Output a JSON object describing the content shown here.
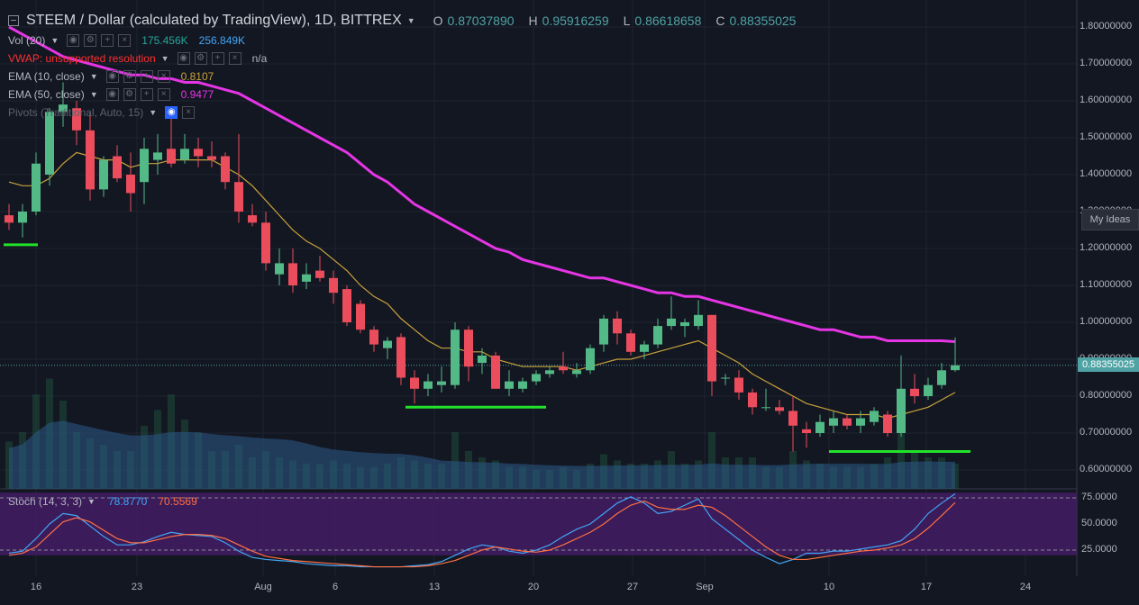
{
  "header": {
    "symbol_title": "STEEM / Dollar (calculated by TradingView), 1D, BITTREX",
    "o_label": "O",
    "o_value": "0.87037890",
    "h_label": "H",
    "h_value": "0.95916259",
    "l_label": "L",
    "l_value": "0.86618658",
    "c_label": "C",
    "c_value": "0.88355025"
  },
  "indicators": {
    "vol": {
      "name": "Vol (20)",
      "v1": "175.456K",
      "v2": "256.849K",
      "v1_color": "#26a69a",
      "v2_color": "#42a5f5"
    },
    "vwap": {
      "name": "VWAP: unsupported resolution",
      "value": "n/a",
      "color": "#ff3030"
    },
    "ema10": {
      "name": "EMA (10, close)",
      "value": "0.8107",
      "color": "#c8a23a"
    },
    "ema50": {
      "name": "EMA (50, close)",
      "value": "0.9477",
      "color": "#e535e5"
    },
    "pivots": {
      "name": "Pivots (Traditional, Auto, 15)"
    },
    "stoch": {
      "name": "Stoch (14, 3, 3)",
      "k": "78.8770",
      "d": "70.5569",
      "k_color": "#42a5f5",
      "d_color": "#ff7043"
    }
  },
  "price_axis": [
    "1.80000000",
    "1.70000000",
    "1.60000000",
    "1.50000000",
    "1.40000000",
    "1.30000000",
    "1.20000000",
    "1.10000000",
    "1.00000000",
    "0.90000000",
    "0.80000000",
    "0.70000000",
    "0.60000000"
  ],
  "current_price": "0.88355025",
  "my_ideas_label": "My Ideas",
  "stoch_axis": [
    "75.0000",
    "50.0000",
    "25.0000"
  ],
  "time_axis": [
    "16",
    "23",
    "Aug",
    "6",
    "13",
    "20",
    "27",
    "Sep",
    "10",
    "17",
    "24"
  ],
  "colors": {
    "up": "#53b987",
    "down": "#eb4d5c",
    "ema10": "#c8a23a",
    "ema50": "#e535e5",
    "stoch_k": "#42a5f5",
    "stoch_d": "#ff7043",
    "support": "#22e22a"
  },
  "chart_data": {
    "type": "candlestick",
    "y_range": [
      0.55,
      1.85
    ],
    "candles": [
      {
        "o": 1.29,
        "h": 1.32,
        "l": 1.25,
        "c": 1.27
      },
      {
        "o": 1.27,
        "h": 1.32,
        "l": 1.23,
        "c": 1.3
      },
      {
        "o": 1.3,
        "h": 1.46,
        "l": 1.29,
        "c": 1.43
      },
      {
        "o": 1.4,
        "h": 1.58,
        "l": 1.37,
        "c": 1.57
      },
      {
        "o": 1.57,
        "h": 1.65,
        "l": 1.53,
        "c": 1.59
      },
      {
        "o": 1.58,
        "h": 1.6,
        "l": 1.48,
        "c": 1.52
      },
      {
        "o": 1.52,
        "h": 1.57,
        "l": 1.33,
        "c": 1.36
      },
      {
        "o": 1.36,
        "h": 1.45,
        "l": 1.34,
        "c": 1.44
      },
      {
        "o": 1.45,
        "h": 1.48,
        "l": 1.38,
        "c": 1.39
      },
      {
        "o": 1.4,
        "h": 1.46,
        "l": 1.3,
        "c": 1.35
      },
      {
        "o": 1.38,
        "h": 1.5,
        "l": 1.32,
        "c": 1.47
      },
      {
        "o": 1.44,
        "h": 1.51,
        "l": 1.4,
        "c": 1.46
      },
      {
        "o": 1.47,
        "h": 1.56,
        "l": 1.42,
        "c": 1.43
      },
      {
        "o": 1.44,
        "h": 1.51,
        "l": 1.43,
        "c": 1.47
      },
      {
        "o": 1.47,
        "h": 1.5,
        "l": 1.42,
        "c": 1.45
      },
      {
        "o": 1.45,
        "h": 1.49,
        "l": 1.42,
        "c": 1.44
      },
      {
        "o": 1.45,
        "h": 1.46,
        "l": 1.36,
        "c": 1.38
      },
      {
        "o": 1.38,
        "h": 1.51,
        "l": 1.27,
        "c": 1.3
      },
      {
        "o": 1.29,
        "h": 1.32,
        "l": 1.26,
        "c": 1.27
      },
      {
        "o": 1.27,
        "h": 1.3,
        "l": 1.14,
        "c": 1.16
      },
      {
        "o": 1.13,
        "h": 1.2,
        "l": 1.1,
        "c": 1.16
      },
      {
        "o": 1.16,
        "h": 1.2,
        "l": 1.08,
        "c": 1.1
      },
      {
        "o": 1.11,
        "h": 1.16,
        "l": 1.09,
        "c": 1.13
      },
      {
        "o": 1.14,
        "h": 1.18,
        "l": 1.11,
        "c": 1.12
      },
      {
        "o": 1.12,
        "h": 1.14,
        "l": 1.05,
        "c": 1.08
      },
      {
        "o": 1.09,
        "h": 1.1,
        "l": 0.99,
        "c": 1.0
      },
      {
        "o": 1.05,
        "h": 1.06,
        "l": 0.97,
        "c": 0.98
      },
      {
        "o": 0.98,
        "h": 0.99,
        "l": 0.92,
        "c": 0.94
      },
      {
        "o": 0.93,
        "h": 0.96,
        "l": 0.9,
        "c": 0.95
      },
      {
        "o": 0.96,
        "h": 0.97,
        "l": 0.83,
        "c": 0.85
      },
      {
        "o": 0.85,
        "h": 0.87,
        "l": 0.78,
        "c": 0.82
      },
      {
        "o": 0.82,
        "h": 0.86,
        "l": 0.8,
        "c": 0.84
      },
      {
        "o": 0.83,
        "h": 0.88,
        "l": 0.81,
        "c": 0.84
      },
      {
        "o": 0.83,
        "h": 1.0,
        "l": 0.82,
        "c": 0.98
      },
      {
        "o": 0.98,
        "h": 0.99,
        "l": 0.84,
        "c": 0.88
      },
      {
        "o": 0.89,
        "h": 0.93,
        "l": 0.86,
        "c": 0.91
      },
      {
        "o": 0.91,
        "h": 0.92,
        "l": 0.82,
        "c": 0.82
      },
      {
        "o": 0.82,
        "h": 0.87,
        "l": 0.8,
        "c": 0.84
      },
      {
        "o": 0.82,
        "h": 0.85,
        "l": 0.81,
        "c": 0.84
      },
      {
        "o": 0.84,
        "h": 0.87,
        "l": 0.83,
        "c": 0.86
      },
      {
        "o": 0.86,
        "h": 0.88,
        "l": 0.85,
        "c": 0.87
      },
      {
        "o": 0.88,
        "h": 0.92,
        "l": 0.86,
        "c": 0.87
      },
      {
        "o": 0.86,
        "h": 0.89,
        "l": 0.85,
        "c": 0.87
      },
      {
        "o": 0.87,
        "h": 0.94,
        "l": 0.86,
        "c": 0.93
      },
      {
        "o": 0.94,
        "h": 1.02,
        "l": 0.92,
        "c": 1.01
      },
      {
        "o": 1.01,
        "h": 1.03,
        "l": 0.94,
        "c": 0.97
      },
      {
        "o": 0.97,
        "h": 0.98,
        "l": 0.91,
        "c": 0.92
      },
      {
        "o": 0.92,
        "h": 0.95,
        "l": 0.9,
        "c": 0.94
      },
      {
        "o": 0.94,
        "h": 1.01,
        "l": 0.93,
        "c": 0.99
      },
      {
        "o": 0.99,
        "h": 1.07,
        "l": 0.98,
        "c": 1.01
      },
      {
        "o": 0.99,
        "h": 1.01,
        "l": 0.96,
        "c": 1.0
      },
      {
        "o": 0.99,
        "h": 1.06,
        "l": 0.98,
        "c": 1.02
      },
      {
        "o": 1.02,
        "h": 1.02,
        "l": 0.8,
        "c": 0.84
      },
      {
        "o": 0.85,
        "h": 0.86,
        "l": 0.83,
        "c": 0.85
      },
      {
        "o": 0.85,
        "h": 0.87,
        "l": 0.79,
        "c": 0.81
      },
      {
        "o": 0.81,
        "h": 0.82,
        "l": 0.75,
        "c": 0.77
      },
      {
        "o": 0.77,
        "h": 0.82,
        "l": 0.76,
        "c": 0.77
      },
      {
        "o": 0.77,
        "h": 0.79,
        "l": 0.75,
        "c": 0.76
      },
      {
        "o": 0.76,
        "h": 0.8,
        "l": 0.65,
        "c": 0.72
      },
      {
        "o": 0.71,
        "h": 0.73,
        "l": 0.66,
        "c": 0.7
      },
      {
        "o": 0.7,
        "h": 0.75,
        "l": 0.69,
        "c": 0.73
      },
      {
        "o": 0.72,
        "h": 0.76,
        "l": 0.7,
        "c": 0.74
      },
      {
        "o": 0.74,
        "h": 0.75,
        "l": 0.71,
        "c": 0.72
      },
      {
        "o": 0.72,
        "h": 0.76,
        "l": 0.7,
        "c": 0.74
      },
      {
        "o": 0.73,
        "h": 0.77,
        "l": 0.72,
        "c": 0.76
      },
      {
        "o": 0.75,
        "h": 0.76,
        "l": 0.69,
        "c": 0.7
      },
      {
        "o": 0.7,
        "h": 0.91,
        "l": 0.69,
        "c": 0.82
      },
      {
        "o": 0.82,
        "h": 0.86,
        "l": 0.78,
        "c": 0.8
      },
      {
        "o": 0.8,
        "h": 0.85,
        "l": 0.79,
        "c": 0.83
      },
      {
        "o": 0.83,
        "h": 0.89,
        "l": 0.82,
        "c": 0.87
      },
      {
        "o": 0.8703789,
        "h": 0.95916259,
        "l": 0.86618658,
        "c": 0.88355025
      }
    ],
    "ema10": [
      1.38,
      1.37,
      1.37,
      1.39,
      1.43,
      1.46,
      1.45,
      1.44,
      1.44,
      1.42,
      1.43,
      1.43,
      1.44,
      1.44,
      1.44,
      1.44,
      1.42,
      1.4,
      1.37,
      1.33,
      1.29,
      1.25,
      1.22,
      1.2,
      1.17,
      1.14,
      1.1,
      1.07,
      1.05,
      1.01,
      0.98,
      0.95,
      0.93,
      0.93,
      0.92,
      0.92,
      0.9,
      0.89,
      0.88,
      0.88,
      0.88,
      0.88,
      0.87,
      0.88,
      0.89,
      0.9,
      0.9,
      0.91,
      0.92,
      0.93,
      0.94,
      0.95,
      0.93,
      0.91,
      0.89,
      0.86,
      0.84,
      0.82,
      0.8,
      0.78,
      0.77,
      0.76,
      0.75,
      0.75,
      0.75,
      0.74,
      0.75,
      0.76,
      0.77,
      0.79,
      0.81
    ],
    "ema50": [
      1.8,
      1.78,
      1.76,
      1.74,
      1.72,
      1.71,
      1.7,
      1.69,
      1.68,
      1.67,
      1.67,
      1.66,
      1.66,
      1.65,
      1.65,
      1.64,
      1.63,
      1.62,
      1.6,
      1.58,
      1.56,
      1.54,
      1.52,
      1.5,
      1.48,
      1.46,
      1.43,
      1.4,
      1.38,
      1.35,
      1.32,
      1.3,
      1.28,
      1.26,
      1.24,
      1.22,
      1.2,
      1.19,
      1.17,
      1.16,
      1.15,
      1.14,
      1.13,
      1.12,
      1.12,
      1.11,
      1.1,
      1.09,
      1.08,
      1.08,
      1.07,
      1.07,
      1.06,
      1.05,
      1.04,
      1.03,
      1.02,
      1.01,
      1.0,
      0.99,
      0.98,
      0.98,
      0.97,
      0.96,
      0.96,
      0.95,
      0.95,
      0.95,
      0.95,
      0.95,
      0.9477
    ],
    "stoch_k": [
      22,
      24,
      36,
      50,
      60,
      58,
      48,
      38,
      30,
      30,
      33,
      38,
      42,
      40,
      39,
      38,
      32,
      24,
      18,
      16,
      15,
      14,
      12,
      11,
      10,
      10,
      9,
      9,
      9,
      9,
      10,
      11,
      14,
      20,
      26,
      30,
      28,
      24,
      22,
      25,
      30,
      38,
      45,
      50,
      60,
      70,
      76,
      70,
      60,
      62,
      68,
      74,
      55,
      45,
      35,
      25,
      18,
      12,
      16,
      22,
      22,
      24,
      24,
      26,
      28,
      30,
      34,
      45,
      60,
      70,
      78.877
    ],
    "stoch_d": [
      20,
      22,
      28,
      40,
      52,
      56,
      52,
      44,
      36,
      32,
      32,
      35,
      38,
      40,
      40,
      39,
      36,
      30,
      24,
      19,
      17,
      15,
      14,
      13,
      12,
      11,
      10,
      9,
      9,
      9,
      9,
      10,
      12,
      15,
      20,
      25,
      28,
      26,
      24,
      23,
      25,
      30,
      36,
      42,
      50,
      60,
      68,
      72,
      66,
      64,
      64,
      68,
      66,
      58,
      48,
      38,
      28,
      20,
      16,
      16,
      18,
      20,
      22,
      24,
      25,
      27,
      30,
      36,
      46,
      58,
      70.5569
    ],
    "volume": [
      0.15,
      0.18,
      0.3,
      0.35,
      0.28,
      0.18,
      0.16,
      0.14,
      0.12,
      0.12,
      0.2,
      0.25,
      0.3,
      0.22,
      0.18,
      0.12,
      0.12,
      0.14,
      0.1,
      0.12,
      0.1,
      0.09,
      0.08,
      0.08,
      0.09,
      0.08,
      0.07,
      0.07,
      0.08,
      0.1,
      0.09,
      0.08,
      0.08,
      0.18,
      0.12,
      0.1,
      0.09,
      0.07,
      0.07,
      0.06,
      0.06,
      0.07,
      0.06,
      0.08,
      0.11,
      0.09,
      0.08,
      0.08,
      0.09,
      0.12,
      0.08,
      0.09,
      0.18,
      0.1,
      0.1,
      0.1,
      0.07,
      0.07,
      0.12,
      0.09,
      0.08,
      0.07,
      0.07,
      0.07,
      0.08,
      0.1,
      0.22,
      0.12,
      0.1,
      0.1,
      0.08
    ],
    "support_lines": [
      1.21,
      0.77,
      0.65
    ]
  }
}
